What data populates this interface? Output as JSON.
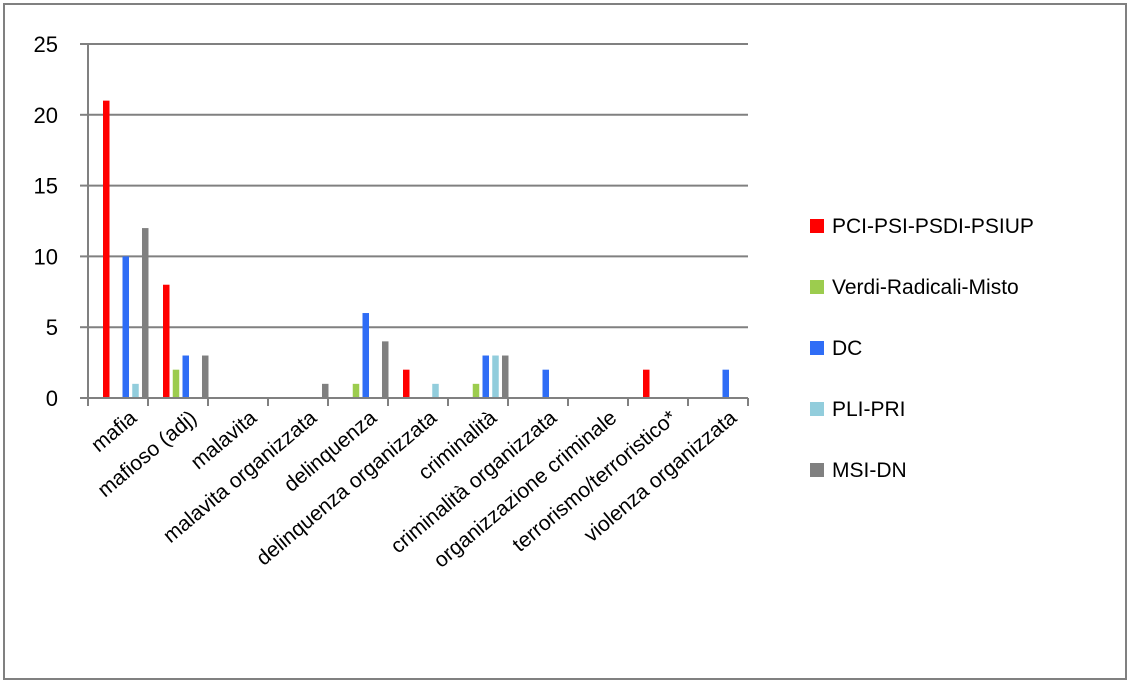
{
  "chart_data": {
    "type": "bar",
    "title": "",
    "xlabel": "",
    "ylabel": "",
    "ylim": [
      0,
      25
    ],
    "yticks": [
      0,
      5,
      10,
      15,
      20,
      25
    ],
    "grid": true,
    "legend_position": "right",
    "categories": [
      "mafia",
      "mafioso (adj)",
      "malavita",
      "malavita organizzata",
      "delinquenza",
      "delinquenza organizzata",
      "criminalità",
      "criminalità organizzata",
      "organizzazione criminale",
      "terrorismo/terroristico*",
      "violenza organizzata"
    ],
    "series": [
      {
        "name": "PCI-PSI-PSDI-PSIUP",
        "color": "#ff0000",
        "values": [
          21,
          8,
          0,
          0,
          0,
          2,
          0,
          0,
          0,
          2,
          0
        ]
      },
      {
        "name": "Verdi-Radicali-Misto",
        "color": "#9ccc4e",
        "values": [
          0,
          2,
          0,
          0,
          1,
          0,
          1,
          0,
          0,
          0,
          0
        ]
      },
      {
        "name": "DC",
        "color": "#2f6df6",
        "values": [
          10,
          3,
          0,
          0,
          6,
          0,
          3,
          2,
          0,
          0,
          2
        ]
      },
      {
        "name": "PLI-PRI",
        "color": "#92cddc",
        "values": [
          1,
          0,
          0,
          0,
          0,
          1,
          3,
          0,
          0,
          0,
          0
        ]
      },
      {
        "name": "MSI-DN",
        "color": "#808080",
        "values": [
          12,
          3,
          0,
          1,
          4,
          0,
          3,
          0,
          0,
          0,
          0
        ]
      }
    ]
  }
}
